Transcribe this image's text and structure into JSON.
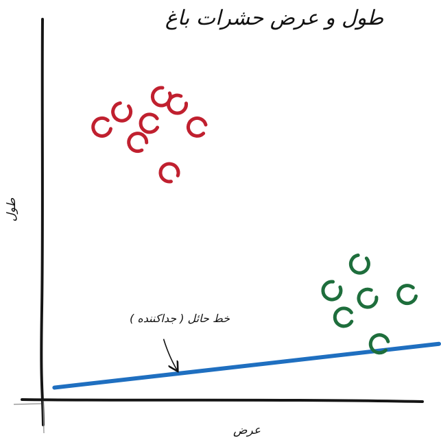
{
  "chart_data": {
    "type": "scatter",
    "title": "طول و عرض حشرات باغ",
    "xlabel": "عرض",
    "ylabel": "طول",
    "xlim": [
      0,
      10
    ],
    "ylim": [
      0,
      10
    ],
    "grid": false,
    "series": [
      {
        "color": "#c0202f",
        "points": [
          [
            2.0,
            7.6
          ],
          [
            3.0,
            8.0
          ],
          [
            3.4,
            7.8
          ],
          [
            1.5,
            7.2
          ],
          [
            2.7,
            7.3
          ],
          [
            3.9,
            7.2
          ],
          [
            2.4,
            6.8
          ],
          [
            3.2,
            6.0
          ]
        ]
      },
      {
        "color": "#1e6e3c",
        "points": [
          [
            8.0,
            3.6
          ],
          [
            7.3,
            2.9
          ],
          [
            8.2,
            2.7
          ],
          [
            9.2,
            2.8
          ],
          [
            7.6,
            2.2
          ],
          [
            8.5,
            1.5
          ]
        ]
      }
    ],
    "separator_line": {
      "color": "#1f6fc0",
      "from": [
        0.3,
        0.35
      ],
      "to": [
        10.0,
        1.5
      ]
    },
    "annotations": [
      {
        "text": "خط حائل ( جداکننده )",
        "target": [
          3.4,
          0.8
        ]
      }
    ]
  }
}
